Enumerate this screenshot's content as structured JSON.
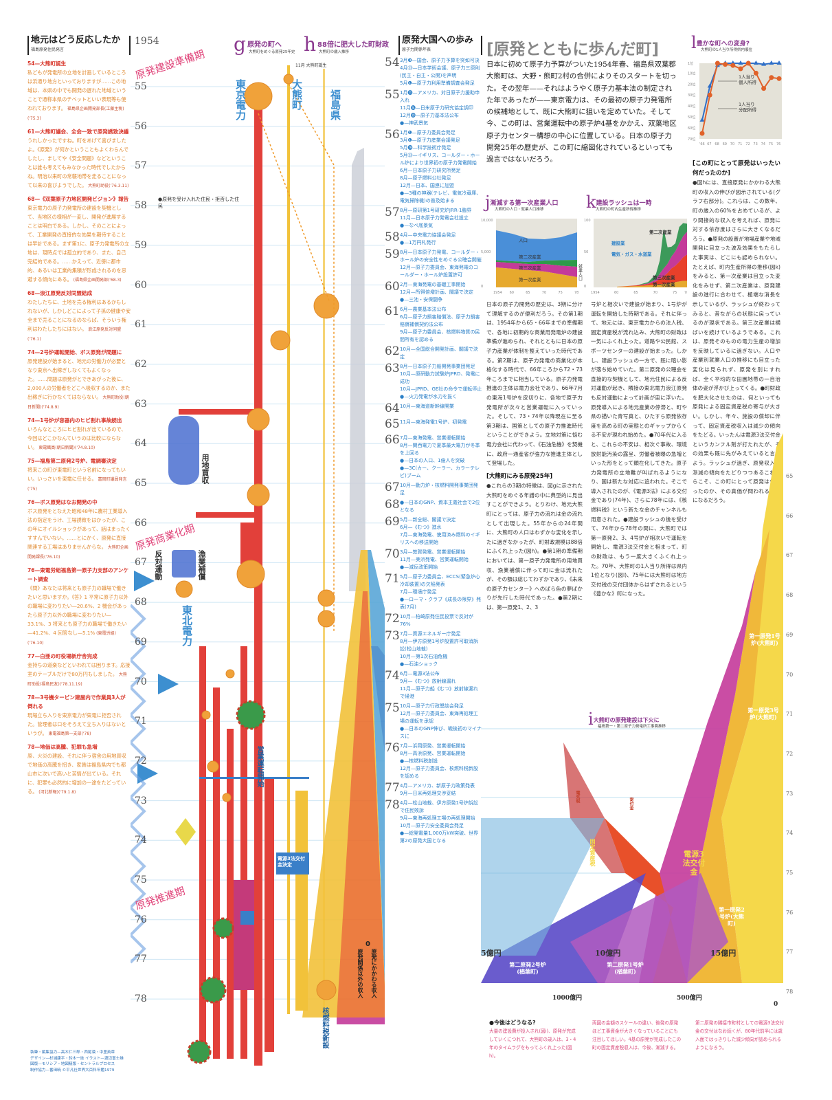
{
  "title": "[原発とともに歩んだ町]",
  "lead": "日本に初めて原子力予算がついた1954年春、福島県双葉郡大熊町は、大野・熊町2村の合併によりそのスタートを切った。その翌年——それはようやく原子力基本法の制定された年であったが——東京電力は、その最初の原子力発電所の候補地として、既に大熊町に狙いを定めていた。そして今、この町は、営業運転中の原子炉4基をかかえ、双葉地区原子力センター構想の中心に位置している。日本の原子力開発25年の歴史が、この町に縮図化されているといっても過言ではないだろう。",
  "left": {
    "heading": "地元はどう反応したか",
    "subheading": "福島原発住民発言",
    "entries": [
      {
        "title": "54—大熊町誕生",
        "text": "私どもが発電所の立地を計画しているところは浜通り地方といっておりますが……この地域は、本県の中でも開発の遅れた地域ということで通称本県のチベットといい表現等も使われております。",
        "source": "福島県企画開発部長(工藤主税)('75.3)"
      },
      {
        "title": "61—大熊町議会、全会一致で原発誘致決議",
        "text": "うれしかったですね。町をあげて喜びましたよ。《原発》が何かということもよくわらんでしたし、ましてや《安全問題》などということは誰も考えてもみなかった時代でしたからね。明治以来町の常襲地帯を走ることになって以来の喜びようでした。",
        "source": "大熊町助役('76.3.11)"
      },
      {
        "title": "68—《双葉原子力地区開発ビジョン》報告",
        "text": "東京電力の原子力発電所の建設を契機として、当地区の様相が一変し、開発が進展することは明白である。しかし、そのことによって、工業開発の直接的な効果を期待することは早計である。まず第1に、原子力発電所の立地は、現時点では孤立的であり、また、自己完結的である。……かえって、近傍に都市的、あるいは工業的集積が形成されるのを忌避する傾向にある。",
        "source": "(福島県企画開発部('68.3)"
      },
      {
        "title": "68—浪江原発反対同盟結成",
        "text": "わたしたちに、土地を売る権利はあるかもしれないが、しかしどこによって子孫の健康や安全まで売ることになるのならば、そういう権利はわたしたちにはない。",
        "source": "浪江原発反対同盟('76.1)"
      },
      {
        "title": "74—2号炉運転開始、ボス原発が問題に",
        "text": "原発建設が始まると、地元の労働力が必要となり東京へ出稼ぎしなくてもよくなった。……問題は原発がとできあがった後に、2,000人の労働者をどこへ吸収するのか、また出稼ぎに行かなくてはならない。",
        "source": "大熊町助役(朝日新聞)('74.8.9)"
      },
      {
        "title": "74—1号炉が容器内のヒビ割れ事故続出",
        "text": "いろんなところにヒビ割れが出ているので、今回はどこかなんていうのは比較にならない。",
        "source": "東電職員(朝日新聞)('74.8.10)"
      },
      {
        "title": "75—福島第二原発2号炉、電調審決定",
        "text": "将来この町が東電町という名前になってもいい。いっさいを東電に任せる。",
        "source": "富岡町議員発言('75)"
      },
      {
        "title": "76—ボス原発はなお開発の中",
        "text": "ボス原発をとなえた昭和48年に農村工業導入法の指定をうけ、工場誘致をはかったが、この年にオイルショックがあって、話はまったくすすんでいない。……とにかく、原発に直接関連する工場はありませんからな。",
        "source": "大熊町企画開発課長('76.10)"
      },
      {
        "title": "76—東電労組福島第一原子力支部のアンケート調査",
        "text": "《問》あなたは将来とも原子力の職場で働きたいと思いますか。《答》1 平常に原子力以外の職場に変わりたい—20.6%、2 機会があったら原子力以外の職場に変わりたい—33.1%、3 将来とも原子力の職場で働きたい—41.2%、4 回答なし—5.1%",
        "source": "(東電労組)('76.10)"
      },
      {
        "title": "77—白亜の町役場新庁舎完成",
        "text": "金持ちの道楽などといわれては困ります。応接室のテーブルだけで80万円もしました。",
        "source": "大熊町助役(福島民友)('78.11.19)"
      },
      {
        "title": "78—3号機タービン建屋内で作業員3人が倒れる",
        "text": "現場立ち入りを東京電力が東電に拒否された。管理者は口をそろえて立ち入りはないというが。",
        "source": "東電福島第一支部('78)"
      },
      {
        "title": "78—地価は高騰、犯罪も急増",
        "text": "原、火災の建設、それに伴う宿舎の用地買収で地価の高騰を招き、家賃は福島県内でも都山市に次いで高いと苦情が出ている。それに、犯罪も必然的に増加の一途をたどっている。",
        "source": "(河北新報)('79.1.8)"
      }
    ]
  },
  "center": {
    "start_year": "1954",
    "years": [
      "55",
      "56",
      "57",
      "58",
      "59",
      "60",
      "61",
      "62",
      "63",
      "64",
      "65",
      "66",
      "67",
      "68",
      "69",
      "70",
      "71",
      "72",
      "73",
      "74",
      "75",
      "76",
      "77",
      "78"
    ],
    "eras": [
      "原発建設準備期",
      "原発商業化期",
      "原発推進期"
    ],
    "g": {
      "letter": "g",
      "title": "原発の町へ",
      "subtitle": "大熊町をめぐる原発25年史"
    },
    "h": {
      "letter": "h",
      "title": "88倍に肥大した町財政",
      "subtitle": "大熊町の歳入推移"
    },
    "columns": [
      "東京電力",
      "大熊町",
      "福島県"
    ],
    "labels": {
      "town_birth": "11月 大熊町誕生",
      "land": "用地買収",
      "fishery": "漁業補償",
      "opposition": "反対運動",
      "residents": "●原発を受け入れた住民・拒否した住民",
      "tepco2": "東北電力",
      "ops": "営業運転開始",
      "dengen": "電源3法交付金決定",
      "nuclear_tax": "核燃料税新設",
      "fixed_tax": "固定資産税",
      "town_revenue_out": "原発関係以外の収入",
      "town_revenue_in": "原発にかかわる収入",
      "zero": "0"
    }
  },
  "timeline": {
    "heading": "原発大国への歩み",
    "subheading": "原子力関係年表",
    "years": [
      {
        "year": "54",
        "entries": [
          "3月❸—国会、原子力予算を突如可決",
          "4月㉓—日本学術会議、原子力三原則(民主・自主・公開)を声明",
          "5月❶—原子力利用準備調査会発足"
        ]
      },
      {
        "year": "55",
        "entries": [
          "1月⓫—アメリカ、対日原子力援助申入れ",
          "11月⓮—日米原子力研究協定調印",
          "12月⓳—原子力基本法公布",
          "●—神武景気"
        ]
      },
      {
        "year": "56",
        "entries": [
          "1月❶—原子力委員会発足",
          "3月❶—原子力産業会議発足",
          "5月⓳—科学技術庁発足",
          "5月㉓—イギリス、コールダー・ホール炉により世界初の原子力発電開始",
          "6月—日本原子力研究所発足",
          "8月—原子燃料公社発足",
          "12月—日本、国連に加盟",
          "●—3種の神器(テレビ、電気冷蔵庫、電気掃除機)の普及始まる"
        ]
      },
      {
        "year": "57",
        "entries": [
          "8月—原研第1号研究炉JRR-1臨界",
          "11月—日本原子力発電会社設立",
          "●—なべ底景気"
        ]
      },
      {
        "year": "58",
        "entries": [
          "4月—中央電力協議会発足",
          "●—1万円札発行"
        ]
      },
      {
        "year": "59",
        "entries": [
          "8月—日本原子力発電、コールダー・ホール炉の安全性をめぐる公聴会開催",
          "12月—原子力委員会、東海発電のコールダー・ホール炉設置許可"
        ]
      },
      {
        "year": "60",
        "entries": [
          "2月—東海発電の基礎工事開始",
          "12月—所得倍増計画、閣議で決定",
          "●—三池・安保闘争"
        ]
      },
      {
        "year": "61",
        "entries": [
          "6月—農業基本法公布",
          "6月—原子力損害賠償法、原子力損害賠償補償契約法公布",
          "9月—原子力委員会、核燃料物質の民間所有を認める"
        ]
      },
      {
        "year": "62",
        "entries": [
          "10月—全国総合開発計画、閣議で決定"
        ]
      },
      {
        "year": "63",
        "entries": [
          "8月—日本原子力船開発事業団発足",
          "10月—原研動力試験炉JPRD、発電に成功",
          "10月—JPRD、GE社の命令で運転停止",
          "●—火力発電が水力を抜く"
        ]
      },
      {
        "year": "64",
        "entries": [
          "10月—東海道新幹線開業"
        ]
      },
      {
        "year": "65",
        "entries": [
          "11月—東海発電1号炉、初発電"
        ]
      },
      {
        "year": "66",
        "entries": [
          "7月—東海発電、営業運転開始",
          "8月—関西電力で夏季最大電力が冬季を上回る",
          "●—日本の人口、1億人を突破",
          "●—3C(カー、クーラー、カラーテレビ)ブーム"
        ]
      },
      {
        "year": "67",
        "entries": [
          "10月—動力炉・核燃料開発事業団発足"
        ]
      },
      {
        "year": "68",
        "entries": [
          "●—日本のGNP、資本主義社会で2位となる"
        ]
      },
      {
        "year": "69",
        "entries": [
          "5月—新全総、閣議で決定",
          "6月—《むつ》進水",
          "7月—東海発電、使用済み燃料のイギリスへの移送開始"
        ]
      },
      {
        "year": "70",
        "entries": [
          "3月—敦賀発電、営業運転開始",
          "11月—美浜発電、営業運転開始",
          "●—減反政策開始"
        ]
      },
      {
        "year": "71",
        "entries": [
          "5月—原子力委員会、ECCS(緊急炉心冷却装置)の欠陥発表",
          "7月—環境庁発足",
          "●—ローマ・クラブ《成長の限界》発表(7月)"
        ]
      },
      {
        "year": "72",
        "entries": [
          "10月—柏崎原発住民投票で反対が76%"
        ]
      },
      {
        "year": "73",
        "entries": [
          "7月—資源エネルギー庁発足",
          "8月—伊方原発1号炉設置許可取消訴訟(松山地裁)",
          "10月—第1次石油危機",
          "●—石油ショック"
        ]
      },
      {
        "year": "74",
        "entries": [
          "6月—電源3法公布",
          "9月—《むつ》放射線漏れ",
          "11月—原子力船《むつ》放射線漏れで帰港"
        ]
      },
      {
        "year": "75",
        "entries": [
          "10月—原子力行政懇談会発足",
          "12月—原子力委員会、東海再処理工場の運転を承認",
          "●—日本のGNP伸び、戦後初のマイナスに"
        ]
      },
      {
        "year": "76",
        "entries": [
          "7月—浜岡原発、営業運転開始",
          "8月—高浜原発、営業運転開始",
          "●—核燃料税創設",
          "12月—原子力委員会、核燃料税新設を認める"
        ]
      },
      {
        "year": "77",
        "entries": [
          "4月—アメリカ、新原子力政策発表",
          "9月—日米再処理交渉妥結"
        ]
      },
      {
        "year": "78",
        "entries": [
          "4月—松山地裁、伊方原発1号炉訴訟で住民敗訴",
          "9月—東海再処理工場の再処理開始",
          "10月—原子力安全委員会発足",
          "●—総発電量1,000万kW突破、世界第2の原発大国となる"
        ]
      }
    ]
  },
  "text_columns": {
    "col1": "日本の原子力開発の歴史は、3期に分けて理解するのが便利だろう。その第1期は、1954年から65・66年までの準備期で、各地に初期的な商業用発電炉の建設準備が進められ、それとともに日本の原子力産業が体制を整えていった時代である。第2期は、原子力発電の商業化が本格化する時代で、66年ころから72・73年ころまでに相当している。原子力発電推進の主体は電力会社であり、66年7月の東海1号炉を皮切りに、各地で原子力発電所が次々と営業運転に入っていった。そして、73・74年以降現在に至る第3期は、国策としての原子力推進時代ということができよう。立地対策に悩む電力会社に代わって、《石油危機》を契機に、政府一通産省が強力な推進主体として登場した。",
    "col1_heading": "[大熊町にみる原発25年]",
    "col1b": "●これらの3期の特徴は、図gに示された大熊町をめぐる年譜の中に典型的に見出すことができよう。とりわけ、地元大熊町にとっては、原子力の流れは金の流れとして出現した。55年からの24年間に、大熊町の人口はわずかな変化を示したに過ぎなかったが、町財政規模は88倍にふくれ上った(図h)。●第1期の準備期においては、第一原子力発電所の用地買収、漁業補償に伴って町に金は流れたが、その額は総じてわずかであり、《未来の原子力センター》へのばら色の夢ばかりが先行した時代であった。●第2期には、第一原発1、2、3",
    "col2": "号炉と相次いで建設が始まり、1号炉が運転を開始した時期である。それに伴って、地元には、東京電力からの法人税、固定資産税が流れ込み、大熊町の財政は一気にふくれ上った。道路や公民館、スポーツセンターの建設が始まった。しかし、建設ラッシュの一方で、既に暗い影が落ち始めていた。第二原発の公聴会を直接的な契機として、地元住民による反対運動が起き、隣接の東北電力浪江原発も反対運動によって計画が宙に浮いた。原発導入による地元産業の停滞と、町や県の描いた青写真と、ひたすら原発依存度を高める町の実態とのギャップからくる不安が現われ始めた。●70年代に入ると、これらの不安は、相次ぐ事故、環境放射能汚染の露呈、労働者被曝の急増といった形をとって顕在化してきた。原子力発電所の立地難が叫ばれるようになり、国は新たな対応に追われた。そこで導入されたのが、《電源3法》による交付金であり(74年)、さらに78年には、《核燃料税》という新たな金のチャンネルも用意された。●建設ラッシュの後を受けて、74年から78年の間に、大熊町では第一原発2、3、4号炉が相次いで運転を開始し、電源3法交付金と相まって、町の財政は、もう一度大きくふくれ上った。70年、大熊町の1人当り所得は県内1位となり(図l)、75年には大熊町は地方交付税の交付団体からはずされるという《豊かな》町になった。",
    "col3_heading": "[この町にとって原発はいったい何だったのか]",
    "col3": "●図hには、直接原発にかかわる大熊町の収入の伸びが図示されている(グラフ右部分)。これらは、この数年、町の歳入の60%を占めているが、より間接的な収入を考えれば、原発に対する依存度はさらに大きくなるだろう。●原発の設置が地場産業や地域開発に目立った波及効果をもたらした事実は、どこにも認められない。たとえば、町内生産所得の推移(図k)をみると、第一次産業は目立った変化をみせず、第二次産業は、原発建設の進行に合わせて、極端な消長を示しているが、ラッシュが終わってみると、昔ながらの状態に戻っているのが現状である。第三次産業は横ばいを続けているようである。これは、原発そのものの電力生産の増加を反映しているに過ぎない。人口や産業別就業人口の推移にも目立った変化は見られず、原発を別にすれば、全く平均的な田園地帯の一自治体の姿が浮かび上ってくる。●町財政を肥大化させたのは、何といっても原発による固定資産税の寄与が大きい。しかし、年々、施設の償却に伴って、固定資産税収入は減少の傾向をたどる。いったんは電源3法交付金というカンフル剤が打たれたが、その効果も既に先がみえていると言えよう。ラッシュが過ぎ、原発収入が漸減の傾向をたどりつつあるこれからこそ、この町にとって原発は何だったのか、その真価が問われることになるだろう。"
  },
  "bottom_notes": [
    {
      "heading": "●今後はどうなる?",
      "text": "大量の建設費が投入され(図i)、原発が完成していくにつれて、大熊町の歳入は、3・4年のタイムラグをもってふくれ上った(図h)。"
    },
    {
      "heading": "",
      "text": "両図の金額のスケールの違い、後発の原発ほど工事資金が大きくなっていることにも注目してほしい。4基の原発が完成したこの町の固定資産税収入は、今後、漸減する。"
    },
    {
      "heading": "",
      "text": "第二原発の隣接市町村としての電源3法交付金の交付はなお続くが、80年代前半には歳入面ではっきりした減少傾向が認められるようになろう。"
    }
  ],
  "credits": [
    "執筆・編集協力—高木仁三郎・西尾漠・中里英章",
    "デザイン—杉浦康平・鈴木一誌 イラスト—渡辺富士雄",
    "図版—モリシア・地図精版・セントラルプロセス",
    "制作協力—番田暁 ©平凡社世界大百科年鑑1979"
  ],
  "chart_data": [
    {
      "type": "line",
      "letter": "l",
      "title": "豊かな町への変身?",
      "subtitle": "大熊町の1人当り所得県内順位",
      "x": [
        "'66",
        "67",
        "68",
        "69",
        "70",
        "71",
        "72",
        "73",
        "74",
        "75",
        "76"
      ],
      "yticks": [
        "1位",
        "10位",
        "20位",
        "30位",
        "40位",
        "50位",
        "60位",
        "70位"
      ],
      "ylim": [
        70,
        1
      ],
      "series": [
        {
          "values": [
            53,
            22,
            3,
            1,
            1,
            1,
            1,
            1,
            2,
            1,
            1
          ],
          "color": "#2f6fc8"
        },
        {
          "values": [
            65,
            30,
            1,
            2,
            3,
            6,
            1,
            10,
            24,
            14,
            15
          ],
          "color": "#e0622a"
        }
      ],
      "annotations": [
        "1人当り 個人所得",
        "1人当り 分配所得"
      ],
      "grid": false
    },
    {
      "type": "area",
      "letter": "j",
      "title": "漸減する第一次産業人口",
      "subtitle": "大熊町の人口・就業人口推移",
      "x": [
        "1954",
        "60",
        "65",
        "70",
        "75",
        "78"
      ],
      "yticks": [
        "10,000",
        "5,000",
        "0"
      ],
      "ylim": [
        0,
        10000
      ],
      "series_labels": [
        "人口",
        "第二次産業",
        "第三次産業",
        "第一次産業"
      ],
      "side_label": "就業人口",
      "population": [
        8300,
        7800,
        7100,
        7000,
        7300,
        8000
      ],
      "stack": {
        "第一次産業": [
          2900,
          2700,
          2500,
          2300,
          1900,
          1500
        ],
        "第三次産業": [
          800,
          850,
          900,
          1100,
          1250,
          1500
        ],
        "第二次産業": [
          250,
          250,
          300,
          500,
          800,
          1000
        ]
      },
      "colors": {
        "人口": "#4a8fd8",
        "第二次産業": "#2e9a4a",
        "第三次産業": "#c43a9a",
        "第一次産業": "#e6a92e"
      }
    },
    {
      "type": "area",
      "letter": "k",
      "title": "建設ラッシュは一時",
      "subtitle": "大熊町の町内生産所得推移",
      "x": [
        "1954",
        "60",
        "65",
        "70",
        "75",
        "78"
      ],
      "yticks": [
        "100",
        "50",
        "0"
      ],
      "ylim": [
        0,
        100
      ],
      "series_labels": [
        "第二次産業",
        "建設業",
        "電気・ガス・水道業",
        "第三次産業",
        "第一次産業"
      ],
      "years_numeric": [
        1960,
        1965,
        1968,
        1970,
        1971,
        1972,
        1973,
        1974,
        1975,
        1976,
        1977,
        1978
      ],
      "stack": {
        "第一次産業": [
          1,
          2,
          3,
          4,
          5,
          5,
          6,
          7,
          8,
          9,
          10,
          10
        ],
        "第三次産業": [
          0,
          1,
          2,
          5,
          8,
          12,
          16,
          22,
          25,
          30,
          36,
          40
        ],
        "電気・ガス・水道業": [
          0,
          0,
          1,
          3,
          8,
          12,
          14,
          18,
          22,
          28,
          32,
          35
        ],
        "建設業": [
          0,
          0,
          2,
          8,
          20,
          60,
          25,
          15,
          12,
          25,
          20,
          12
        ]
      },
      "colors": {
        "第一次産業": "#e6a92e",
        "第三次産業": "#e8402a",
        "電気・ガス・水道業": "#c43a9a",
        "建設業": "#3c9a5a"
      }
    },
    {
      "type": "area",
      "letter": "i",
      "title": "大熊町の原発建設は下火に",
      "subtitle": "福島第一・第二原子力発電所工事費推移",
      "years": [
        "65",
        "66",
        "67",
        "68",
        "69",
        "70",
        "71",
        "72",
        "73",
        "74",
        "75",
        "76",
        "77",
        "78"
      ],
      "top_axis": [
        "5億円",
        "10億円",
        "15億円"
      ],
      "bottom_axis": [
        "1000億円",
        "500億円",
        "0"
      ],
      "labels": [
        "第一原発1号炉(大熊町)",
        "第一原発2号炉(大熊町)",
        "第一原発3号炉(大熊町)",
        "電源3法交付金",
        "固定資産税",
        "寄付金",
        "電気税",
        "第二原発1号炉(楢葉町)",
        "第二原発2号炉(楢葉町)"
      ]
    }
  ]
}
